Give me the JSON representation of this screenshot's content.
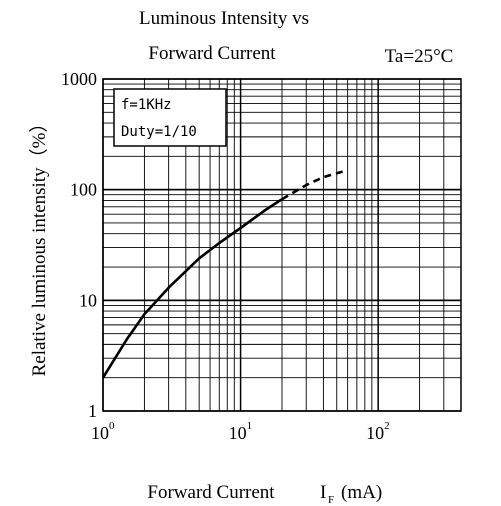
{
  "chart_data": {
    "type": "line",
    "title_line1": "Luminous Intensity vs",
    "title_line2": "Forward Current",
    "condition": "Ta=25°C",
    "xlabel": "Forward Current",
    "xlabel_symbol": "I",
    "xlabel_subscript": "F",
    "xlabel_unit": "(mA)",
    "ylabel": "Relative luminous intensity（%）",
    "x_scale": "log",
    "y_scale": "log",
    "xlim": [
      1,
      400
    ],
    "ylim": [
      1,
      1000
    ],
    "x_ticks": [
      {
        "value": 1,
        "base": "10",
        "exp": "0"
      },
      {
        "value": 10,
        "base": "10",
        "exp": "1"
      },
      {
        "value": 100,
        "base": "10",
        "exp": "2"
      }
    ],
    "y_ticks": [
      {
        "value": 1,
        "label": "1"
      },
      {
        "value": 10,
        "label": "10"
      },
      {
        "value": 100,
        "label": "100"
      },
      {
        "value": 1000,
        "label": "1000"
      }
    ],
    "grid": true,
    "annotation": [
      "f=1KHz",
      "Duty=1/10"
    ],
    "series": [
      {
        "style": "solid",
        "x": [
          1,
          1.5,
          2,
          3,
          5,
          7,
          10,
          15,
          20
        ],
        "y": [
          2,
          4.5,
          7.5,
          13,
          24,
          33,
          45,
          65,
          82
        ]
      },
      {
        "style": "dashed",
        "x": [
          20,
          30,
          40,
          60
        ],
        "y": [
          82,
          110,
          130,
          150
        ]
      }
    ]
  }
}
